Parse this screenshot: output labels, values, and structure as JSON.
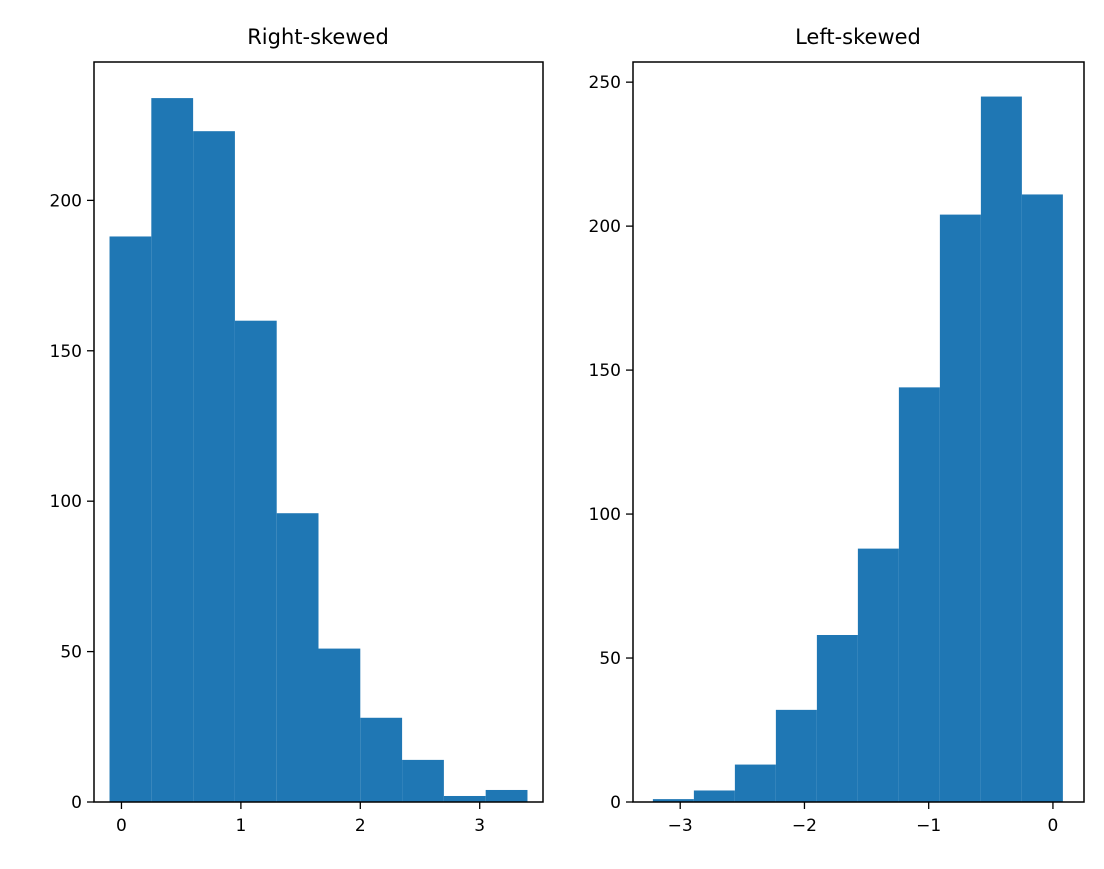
{
  "chart_data": [
    {
      "type": "bar",
      "title": "Right-skewed",
      "xlabel": "",
      "ylabel": "",
      "bin_edges": [
        -0.1,
        0.25,
        0.6,
        0.95,
        1.3,
        1.65,
        2.0,
        2.35,
        2.7,
        3.05,
        3.4
      ],
      "values": [
        188,
        234,
        223,
        160,
        96,
        51,
        28,
        14,
        2,
        4
      ],
      "xlim": [
        -0.23,
        3.53
      ],
      "ylim": [
        0,
        246
      ],
      "xticks": [
        0,
        1,
        2,
        3
      ],
      "xtick_labels": [
        "0",
        "1",
        "2",
        "3"
      ],
      "yticks": [
        0,
        50,
        100,
        150,
        200
      ],
      "ytick_labels": [
        "0",
        "50",
        "100",
        "150",
        "200"
      ],
      "color": "#1f77b4",
      "grid": false
    },
    {
      "type": "bar",
      "title": "Left-skewed",
      "xlabel": "",
      "ylabel": "",
      "bin_edges": [
        -3.22,
        -2.89,
        -2.56,
        -2.23,
        -1.9,
        -1.57,
        -1.24,
        -0.91,
        -0.58,
        -0.25,
        0.08
      ],
      "values": [
        1,
        4,
        13,
        32,
        58,
        88,
        144,
        204,
        245,
        211
      ],
      "xlim": [
        -3.38,
        0.25
      ],
      "ylim": [
        0,
        257
      ],
      "xticks": [
        -3,
        -2,
        -1,
        0
      ],
      "xtick_labels": [
        "−3",
        "−2",
        "−1",
        "0"
      ],
      "yticks": [
        0,
        50,
        100,
        150,
        200,
        250
      ],
      "ytick_labels": [
        "0",
        "50",
        "100",
        "150",
        "200",
        "250"
      ],
      "color": "#1f77b4",
      "grid": false
    }
  ]
}
